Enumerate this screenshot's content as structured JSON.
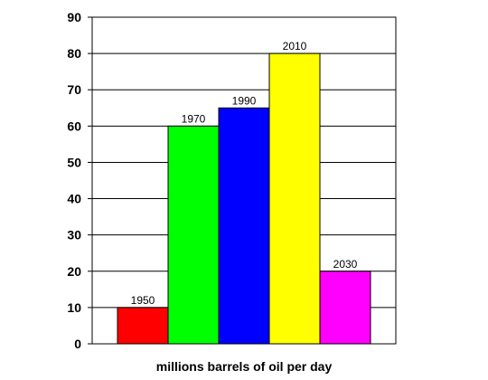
{
  "chart_data": {
    "type": "bar",
    "categories": [
      "1950",
      "1970",
      "1990",
      "2010",
      "2030"
    ],
    "values": [
      10,
      60,
      65,
      80,
      20
    ],
    "colors": [
      "#ff0000",
      "#00ff00",
      "#0000ff",
      "#ffff00",
      "#ff00ff"
    ],
    "xlabel": "millions barrels of oil per day",
    "ylabel": "",
    "ylim": [
      0,
      90
    ],
    "yticks": [
      "0",
      "10",
      "20",
      "30",
      "40",
      "50",
      "60",
      "70",
      "80",
      "90"
    ],
    "grid": "horizontal",
    "legend": "none"
  }
}
